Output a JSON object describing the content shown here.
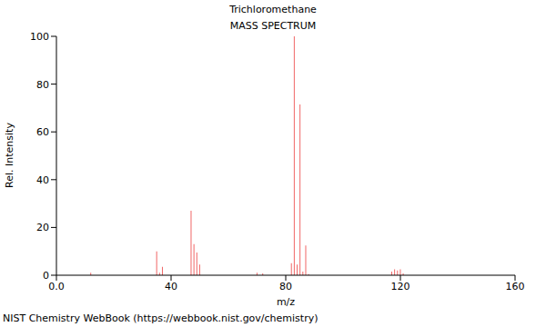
{
  "chart_data": {
    "type": "bar",
    "title": "Trichloromethane",
    "subtitle": "MASS SPECTRUM",
    "x_label": "m/z",
    "y_label": "Rel. Intensity",
    "footer": "NIST Chemistry WebBook (https://webbook.nist.gov/chemistry)",
    "x": [
      12,
      35,
      36,
      37,
      47,
      48,
      49,
      50,
      70,
      72,
      82,
      83,
      84,
      85,
      86,
      87,
      88,
      117,
      118,
      119,
      120,
      121
    ],
    "values": [
      1,
      10,
      1,
      3.5,
      27,
      13,
      9.5,
      4.5,
      1,
      0.8,
      5,
      100,
      4.5,
      71.5,
      1.5,
      12.5,
      0.5,
      1.5,
      2.5,
      2,
      2.5,
      0.8
    ],
    "color": "#f06666",
    "xlim": [
      0,
      160
    ],
    "xticks": [
      {
        "value": 0,
        "label": "0.0"
      },
      40,
      80,
      120,
      160
    ],
    "ylim": [
      0,
      100
    ],
    "yticks": [
      0,
      20,
      40,
      60,
      80,
      100
    ],
    "grid": false
  }
}
